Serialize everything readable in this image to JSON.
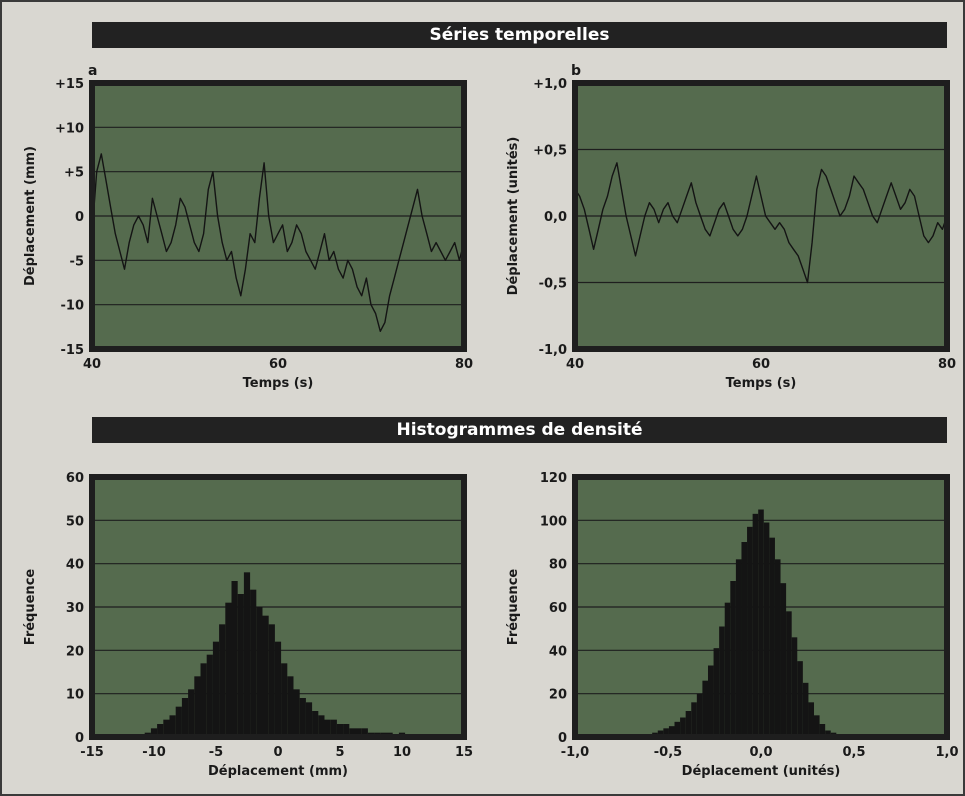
{
  "header": {
    "top_title": "Séries temporelles",
    "bottom_title": "Histogrammes de densité"
  },
  "colors": {
    "plot_bg": "#556b4e",
    "frame": "#1e1e1e",
    "grid": "#1e1e1e",
    "trace": "#141414",
    "banner": "#222222"
  },
  "chart_data": [
    {
      "type": "line",
      "panel_label": "a",
      "xlabel": "Temps (s)",
      "ylabel": "Déplacement (mm)",
      "xlim": [
        40,
        80
      ],
      "ylim": [
        -15,
        15
      ],
      "xticks": [
        40,
        60,
        80
      ],
      "xtick_labels": [
        "40",
        "60",
        "80"
      ],
      "yticks": [
        15,
        10,
        5,
        0,
        -5,
        -10,
        -15
      ],
      "ytick_labels": [
        "+15",
        "+10",
        "+5",
        "0",
        "-5",
        "-10",
        "-15"
      ],
      "grid": true,
      "series": [
        {
          "x": [
            40,
            40.5,
            41,
            41.5,
            42,
            42.5,
            43,
            43.5,
            44,
            44.5,
            45,
            45.5,
            46,
            46.5,
            47,
            47.5,
            48,
            48.5,
            49,
            49.5,
            50,
            50.5,
            51,
            51.5,
            52,
            52.5,
            53,
            53.5,
            54,
            54.5,
            55,
            55.5,
            56,
            56.5,
            57,
            57.5,
            58,
            58.5,
            59,
            59.5,
            60,
            60.5,
            61,
            61.5,
            62,
            62.5,
            63,
            63.5,
            64,
            64.5,
            65,
            65.5,
            66,
            66.5,
            67,
            67.5,
            68,
            68.5,
            69,
            69.5,
            70,
            70.5,
            71,
            71.5,
            72,
            72.5,
            73,
            73.5,
            74,
            74.5,
            75,
            75.5,
            76,
            76.5,
            77,
            77.5,
            78,
            78.5,
            79,
            79.5,
            80
          ],
          "y": [
            -2,
            5,
            7,
            4,
            1,
            -2,
            -4,
            -6,
            -3,
            -1,
            0,
            -1,
            -3,
            2,
            0,
            -2,
            -4,
            -3,
            -1,
            2,
            1,
            -1,
            -3,
            -4,
            -2,
            3,
            5,
            0,
            -3,
            -5,
            -4,
            -7,
            -9,
            -6,
            -2,
            -3,
            2,
            6,
            0,
            -3,
            -2,
            -1,
            -4,
            -3,
            -1,
            -2,
            -4,
            -5,
            -6,
            -4,
            -2,
            -5,
            -4,
            -6,
            -7,
            -5,
            -6,
            -8,
            -9,
            -7,
            -10,
            -11,
            -13,
            -12,
            -9,
            -7,
            -5,
            -3,
            -1,
            1,
            3,
            0,
            -2,
            -4,
            -3,
            -4,
            -5,
            -4,
            -3,
            -5,
            -3
          ]
        }
      ]
    },
    {
      "type": "line",
      "panel_label": "b",
      "xlabel": "Temps (s)",
      "ylabel": "Déplacement (unités)",
      "xlim": [
        40,
        80
      ],
      "ylim": [
        -1.0,
        1.0
      ],
      "xticks": [
        40,
        60,
        80
      ],
      "xtick_labels": [
        "40",
        "60",
        "80"
      ],
      "yticks": [
        1.0,
        0.5,
        0.0,
        -0.5,
        -1.0
      ],
      "ytick_labels": [
        "+1,0",
        "+0,5",
        "0,0",
        "-0,5",
        "-1,0"
      ],
      "grid": true,
      "series": [
        {
          "x": [
            40,
            40.5,
            41,
            41.5,
            42,
            42.5,
            43,
            43.5,
            44,
            44.5,
            45,
            45.5,
            46,
            46.5,
            47,
            47.5,
            48,
            48.5,
            49,
            49.5,
            50,
            50.5,
            51,
            51.5,
            52,
            52.5,
            53,
            53.5,
            54,
            54.5,
            55,
            55.5,
            56,
            56.5,
            57,
            57.5,
            58,
            58.5,
            59,
            59.5,
            60,
            60.5,
            61,
            61.5,
            62,
            62.5,
            63,
            63.5,
            64,
            64.5,
            65,
            65.5,
            66,
            66.5,
            67,
            67.5,
            68,
            68.5,
            69,
            69.5,
            70,
            70.5,
            71,
            71.5,
            72,
            72.5,
            73,
            73.5,
            74,
            74.5,
            75,
            75.5,
            76,
            76.5,
            77,
            77.5,
            78,
            78.5,
            79,
            79.5,
            80
          ],
          "y": [
            0.2,
            0.15,
            0.05,
            -0.1,
            -0.25,
            -0.1,
            0.05,
            0.15,
            0.3,
            0.4,
            0.2,
            0.0,
            -0.15,
            -0.3,
            -0.15,
            0.0,
            0.1,
            0.05,
            -0.05,
            0.05,
            0.1,
            0.0,
            -0.05,
            0.05,
            0.15,
            0.25,
            0.1,
            0.0,
            -0.1,
            -0.15,
            -0.05,
            0.05,
            0.1,
            0.0,
            -0.1,
            -0.15,
            -0.1,
            0.0,
            0.15,
            0.3,
            0.15,
            0.0,
            -0.05,
            -0.1,
            -0.05,
            -0.1,
            -0.2,
            -0.25,
            -0.3,
            -0.4,
            -0.5,
            -0.2,
            0.2,
            0.35,
            0.3,
            0.2,
            0.1,
            0.0,
            0.05,
            0.15,
            0.3,
            0.25,
            0.2,
            0.1,
            0.0,
            -0.05,
            0.05,
            0.15,
            0.25,
            0.15,
            0.05,
            0.1,
            0.2,
            0.15,
            0.0,
            -0.15,
            -0.2,
            -0.15,
            -0.05,
            -0.1,
            0.0
          ]
        }
      ]
    },
    {
      "type": "bar",
      "panel_label": "",
      "xlabel": "Déplacement (mm)",
      "ylabel": "Fréquence",
      "xlim": [
        -15,
        15
      ],
      "ylim": [
        0,
        60
      ],
      "xticks": [
        -15,
        -10,
        -5,
        0,
        5,
        10,
        15
      ],
      "xtick_labels": [
        "-15",
        "-10",
        "-5",
        "0",
        "5",
        "10",
        "15"
      ],
      "yticks": [
        60,
        50,
        40,
        30,
        20,
        10,
        0
      ],
      "ytick_labels": [
        "60",
        "50",
        "40",
        "30",
        "20",
        "10",
        "0"
      ],
      "grid": true,
      "bins": [
        -10.5,
        -10.0,
        -9.5,
        -9.0,
        -8.5,
        -8.0,
        -7.5,
        -7.0,
        -6.5,
        -6.0,
        -5.5,
        -5.0,
        -4.5,
        -4.0,
        -3.5,
        -3.0,
        -2.5,
        -2.0,
        -1.5,
        -1.0,
        -0.5,
        0.0,
        0.5,
        1.0,
        1.5,
        2.0,
        2.5,
        3.0,
        3.5,
        4.0,
        4.5,
        5.0,
        5.5,
        6.0,
        6.5,
        7.0,
        7.5,
        8.0,
        8.5,
        9.0,
        9.5,
        10.0,
        10.5
      ],
      "values": [
        1,
        2,
        3,
        4,
        5,
        7,
        9,
        11,
        14,
        17,
        19,
        22,
        26,
        31,
        36,
        33,
        38,
        34,
        30,
        28,
        26,
        22,
        17,
        14,
        11,
        9,
        8,
        6,
        5,
        4,
        4,
        3,
        3,
        2,
        2,
        2,
        1,
        1,
        1,
        1,
        0,
        1,
        0
      ]
    },
    {
      "type": "bar",
      "panel_label": "",
      "xlabel": "Déplacement (unités)",
      "ylabel": "Fréquence",
      "xlim": [
        -1.0,
        1.0
      ],
      "ylim": [
        0,
        120
      ],
      "xticks": [
        -1.0,
        -0.5,
        0.0,
        0.5,
        1.0
      ],
      "xtick_labels": [
        "-1,0",
        "-0,5",
        "0,0",
        "0,5",
        "1,0"
      ],
      "yticks": [
        120,
        100,
        80,
        60,
        40,
        20,
        0
      ],
      "ytick_labels": [
        "120",
        "100",
        "80",
        "60",
        "40",
        "20",
        "0"
      ],
      "grid": true,
      "bins": [
        -0.6,
        -0.57,
        -0.54,
        -0.51,
        -0.48,
        -0.45,
        -0.42,
        -0.39,
        -0.36,
        -0.33,
        -0.3,
        -0.27,
        -0.24,
        -0.21,
        -0.18,
        -0.15,
        -0.12,
        -0.09,
        -0.06,
        -0.03,
        0.0,
        0.03,
        0.06,
        0.09,
        0.12,
        0.15,
        0.18,
        0.21,
        0.24,
        0.27,
        0.3,
        0.33,
        0.36,
        0.39,
        0.42
      ],
      "values": [
        1,
        2,
        3,
        4,
        5,
        7,
        9,
        12,
        16,
        20,
        26,
        33,
        41,
        51,
        62,
        72,
        82,
        90,
        97,
        103,
        105,
        99,
        92,
        82,
        71,
        58,
        46,
        35,
        25,
        16,
        10,
        6,
        3,
        2,
        1
      ]
    }
  ]
}
